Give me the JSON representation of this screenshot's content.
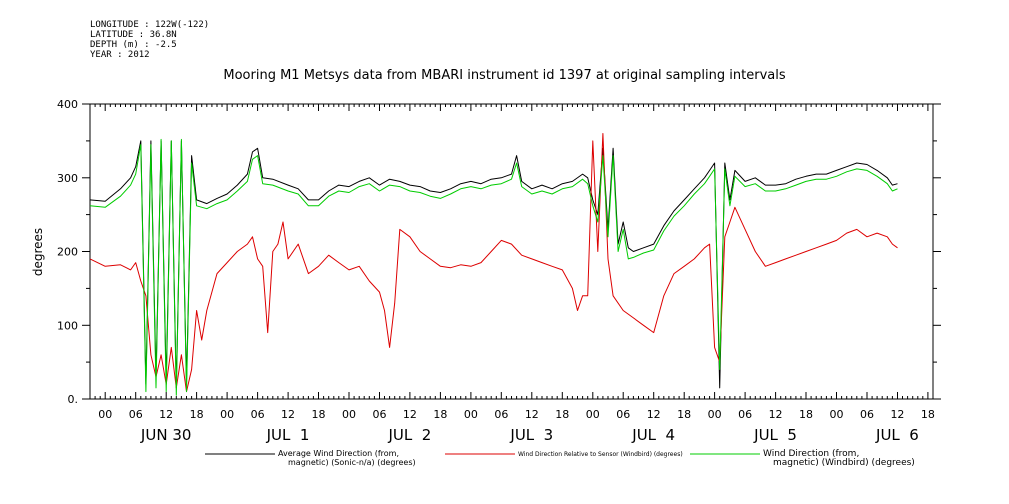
{
  "meta": {
    "longitude": "LONGITUDE : 122W(-122)",
    "latitude": "LATITUDE : 36.8N",
    "depth": "DEPTH (m) : -2.5",
    "year": "YEAR : 2012"
  },
  "chart_data": {
    "type": "line",
    "title": "Mooring M1 Metsys data from MBARI instrument id 1397 at original sampling intervals",
    "ylabel": "degrees",
    "ylim": [
      0,
      400
    ],
    "yticks": [
      0,
      100,
      200,
      300,
      400
    ],
    "ytick_labels": [
      "0.",
      "100",
      "200",
      "300",
      "400"
    ],
    "xlim_hours": [
      -3,
      163
    ],
    "hour_tick_labels": [
      "00",
      "06",
      "12",
      "18",
      "00",
      "06",
      "12",
      "18",
      "00",
      "06",
      "12",
      "18",
      "00",
      "06",
      "12",
      "18",
      "00",
      "06",
      "12",
      "18",
      "00",
      "06",
      "12",
      "18",
      "00",
      "06",
      "12",
      "18"
    ],
    "day_labels": [
      "JUN 30",
      "JUL  1",
      "JUL  2",
      "JUL  3",
      "JUL  4",
      "JUL  5",
      "JUL  6"
    ],
    "grid": false,
    "legend_position": "bottom",
    "series": [
      {
        "name": "Average Wind Direction (from, magnetic) (Sonic-n/a) (degrees)",
        "legend_line1": "Average Wind Direction (from,",
        "legend_line2": "magnetic) (Sonic-n/a) (degrees)",
        "color": "#000000",
        "points": [
          [
            -3,
            270
          ],
          [
            0,
            268
          ],
          [
            3,
            285
          ],
          [
            5,
            300
          ],
          [
            6,
            315
          ],
          [
            7,
            350
          ],
          [
            8,
            20
          ],
          [
            9,
            350
          ],
          [
            10,
            30
          ],
          [
            11,
            350
          ],
          [
            12,
            25
          ],
          [
            13,
            350
          ],
          [
            14,
            15
          ],
          [
            15,
            350
          ],
          [
            16,
            20
          ],
          [
            17,
            330
          ],
          [
            18,
            270
          ],
          [
            20,
            265
          ],
          [
            22,
            272
          ],
          [
            24,
            278
          ],
          [
            26,
            290
          ],
          [
            28,
            305
          ],
          [
            29,
            335
          ],
          [
            30,
            340
          ],
          [
            31,
            300
          ],
          [
            33,
            298
          ],
          [
            36,
            290
          ],
          [
            38,
            285
          ],
          [
            40,
            270
          ],
          [
            42,
            270
          ],
          [
            44,
            282
          ],
          [
            46,
            290
          ],
          [
            48,
            288
          ],
          [
            50,
            295
          ],
          [
            52,
            300
          ],
          [
            54,
            290
          ],
          [
            56,
            298
          ],
          [
            58,
            295
          ],
          [
            60,
            290
          ],
          [
            62,
            288
          ],
          [
            64,
            282
          ],
          [
            66,
            280
          ],
          [
            68,
            285
          ],
          [
            70,
            292
          ],
          [
            72,
            295
          ],
          [
            74,
            292
          ],
          [
            76,
            298
          ],
          [
            78,
            300
          ],
          [
            80,
            305
          ],
          [
            81,
            330
          ],
          [
            82,
            295
          ],
          [
            84,
            285
          ],
          [
            86,
            290
          ],
          [
            88,
            285
          ],
          [
            90,
            292
          ],
          [
            92,
            295
          ],
          [
            94,
            305
          ],
          [
            95,
            300
          ],
          [
            96,
            270
          ],
          [
            97,
            250
          ],
          [
            98,
            340
          ],
          [
            99,
            230
          ],
          [
            100,
            340
          ],
          [
            101,
            210
          ],
          [
            102,
            240
          ],
          [
            103,
            205
          ],
          [
            104,
            200
          ],
          [
            106,
            205
          ],
          [
            108,
            210
          ],
          [
            110,
            235
          ],
          [
            112,
            255
          ],
          [
            114,
            270
          ],
          [
            116,
            285
          ],
          [
            118,
            300
          ],
          [
            119,
            310
          ],
          [
            120,
            320
          ],
          [
            121,
            15
          ],
          [
            122,
            320
          ],
          [
            123,
            270
          ],
          [
            124,
            310
          ],
          [
            126,
            295
          ],
          [
            128,
            300
          ],
          [
            130,
            290
          ],
          [
            132,
            290
          ],
          [
            134,
            292
          ],
          [
            136,
            298
          ],
          [
            138,
            302
          ],
          [
            140,
            305
          ],
          [
            142,
            305
          ],
          [
            144,
            310
          ],
          [
            146,
            315
          ],
          [
            148,
            320
          ],
          [
            150,
            318
          ],
          [
            152,
            310
          ],
          [
            154,
            300
          ],
          [
            155,
            290
          ],
          [
            156,
            292
          ]
        ]
      },
      {
        "name": "Wind Direction Relative to Sensor (Windbird) (degrees)",
        "legend_line1": "Wind Direction Relative to Sensor (Windbird) (degrees)",
        "legend_line2": "",
        "color": "#dd0000",
        "points": [
          [
            -3,
            190
          ],
          [
            0,
            180
          ],
          [
            3,
            182
          ],
          [
            5,
            175
          ],
          [
            6,
            185
          ],
          [
            7,
            160
          ],
          [
            8,
            140
          ],
          [
            9,
            60
          ],
          [
            10,
            30
          ],
          [
            11,
            60
          ],
          [
            12,
            20
          ],
          [
            13,
            70
          ],
          [
            14,
            15
          ],
          [
            15,
            60
          ],
          [
            16,
            10
          ],
          [
            17,
            40
          ],
          [
            18,
            120
          ],
          [
            19,
            80
          ],
          [
            20,
            120
          ],
          [
            22,
            170
          ],
          [
            24,
            185
          ],
          [
            26,
            200
          ],
          [
            28,
            210
          ],
          [
            29,
            220
          ],
          [
            30,
            190
          ],
          [
            31,
            180
          ],
          [
            32,
            90
          ],
          [
            33,
            200
          ],
          [
            34,
            210
          ],
          [
            35,
            240
          ],
          [
            36,
            190
          ],
          [
            38,
            210
          ],
          [
            40,
            170
          ],
          [
            42,
            180
          ],
          [
            44,
            195
          ],
          [
            46,
            185
          ],
          [
            48,
            175
          ],
          [
            50,
            180
          ],
          [
            52,
            160
          ],
          [
            54,
            145
          ],
          [
            55,
            120
          ],
          [
            56,
            70
          ],
          [
            57,
            130
          ],
          [
            58,
            230
          ],
          [
            60,
            220
          ],
          [
            62,
            200
          ],
          [
            64,
            190
          ],
          [
            66,
            180
          ],
          [
            68,
            178
          ],
          [
            70,
            182
          ],
          [
            72,
            180
          ],
          [
            74,
            185
          ],
          [
            76,
            200
          ],
          [
            78,
            215
          ],
          [
            80,
            210
          ],
          [
            82,
            195
          ],
          [
            84,
            190
          ],
          [
            86,
            185
          ],
          [
            88,
            180
          ],
          [
            90,
            175
          ],
          [
            92,
            150
          ],
          [
            93,
            120
          ],
          [
            94,
            140
          ],
          [
            95,
            140
          ],
          [
            96,
            350
          ],
          [
            97,
            200
          ],
          [
            98,
            360
          ],
          [
            99,
            190
          ],
          [
            100,
            140
          ],
          [
            102,
            120
          ],
          [
            104,
            110
          ],
          [
            106,
            100
          ],
          [
            108,
            90
          ],
          [
            110,
            140
          ],
          [
            112,
            170
          ],
          [
            114,
            180
          ],
          [
            116,
            190
          ],
          [
            118,
            205
          ],
          [
            119,
            210
          ],
          [
            120,
            70
          ],
          [
            121,
            50
          ],
          [
            122,
            220
          ],
          [
            123,
            240
          ],
          [
            124,
            260
          ],
          [
            126,
            230
          ],
          [
            128,
            200
          ],
          [
            130,
            180
          ],
          [
            132,
            185
          ],
          [
            134,
            190
          ],
          [
            136,
            195
          ],
          [
            138,
            200
          ],
          [
            140,
            205
          ],
          [
            142,
            210
          ],
          [
            144,
            215
          ],
          [
            146,
            225
          ],
          [
            148,
            230
          ],
          [
            150,
            220
          ],
          [
            152,
            225
          ],
          [
            154,
            220
          ],
          [
            155,
            210
          ],
          [
            156,
            205
          ]
        ]
      },
      {
        "name": "Wind Direction (from, magnetic) (Windbird) (degrees)",
        "legend_line1": "Wind Direction (from,",
        "legend_line2": "magnetic) (Windbird) (degrees)",
        "color": "#00cc00",
        "points": [
          [
            -3,
            262
          ],
          [
            0,
            260
          ],
          [
            3,
            275
          ],
          [
            5,
            290
          ],
          [
            6,
            305
          ],
          [
            7,
            345
          ],
          [
            8,
            10
          ],
          [
            9,
            345
          ],
          [
            10,
            15
          ],
          [
            11,
            352
          ],
          [
            12,
            10
          ],
          [
            13,
            350
          ],
          [
            14,
            5
          ],
          [
            15,
            352
          ],
          [
            16,
            10
          ],
          [
            17,
            320
          ],
          [
            18,
            262
          ],
          [
            20,
            258
          ],
          [
            22,
            265
          ],
          [
            24,
            270
          ],
          [
            26,
            282
          ],
          [
            28,
            295
          ],
          [
            29,
            325
          ],
          [
            30,
            330
          ],
          [
            31,
            292
          ],
          [
            33,
            290
          ],
          [
            36,
            282
          ],
          [
            38,
            278
          ],
          [
            40,
            262
          ],
          [
            42,
            262
          ],
          [
            44,
            275
          ],
          [
            46,
            282
          ],
          [
            48,
            280
          ],
          [
            50,
            288
          ],
          [
            52,
            292
          ],
          [
            54,
            282
          ],
          [
            56,
            290
          ],
          [
            58,
            288
          ],
          [
            60,
            282
          ],
          [
            62,
            280
          ],
          [
            64,
            275
          ],
          [
            66,
            272
          ],
          [
            68,
            278
          ],
          [
            70,
            285
          ],
          [
            72,
            288
          ],
          [
            74,
            285
          ],
          [
            76,
            290
          ],
          [
            78,
            292
          ],
          [
            80,
            298
          ],
          [
            81,
            320
          ],
          [
            82,
            288
          ],
          [
            84,
            278
          ],
          [
            86,
            282
          ],
          [
            88,
            278
          ],
          [
            90,
            285
          ],
          [
            92,
            288
          ],
          [
            94,
            298
          ],
          [
            95,
            292
          ],
          [
            96,
            262
          ],
          [
            97,
            240
          ],
          [
            98,
            330
          ],
          [
            99,
            220
          ],
          [
            100,
            330
          ],
          [
            101,
            200
          ],
          [
            102,
            230
          ],
          [
            103,
            190
          ],
          [
            104,
            192
          ],
          [
            106,
            198
          ],
          [
            108,
            202
          ],
          [
            110,
            228
          ],
          [
            112,
            248
          ],
          [
            114,
            262
          ],
          [
            116,
            278
          ],
          [
            118,
            292
          ],
          [
            119,
            302
          ],
          [
            120,
            312
          ],
          [
            121,
            40
          ],
          [
            122,
            312
          ],
          [
            123,
            262
          ],
          [
            124,
            302
          ],
          [
            126,
            288
          ],
          [
            128,
            292
          ],
          [
            130,
            282
          ],
          [
            132,
            282
          ],
          [
            134,
            285
          ],
          [
            136,
            290
          ],
          [
            138,
            295
          ],
          [
            140,
            298
          ],
          [
            142,
            298
          ],
          [
            144,
            302
          ],
          [
            146,
            308
          ],
          [
            148,
            312
          ],
          [
            150,
            310
          ],
          [
            152,
            302
          ],
          [
            154,
            292
          ],
          [
            155,
            282
          ],
          [
            156,
            285
          ]
        ]
      }
    ]
  }
}
